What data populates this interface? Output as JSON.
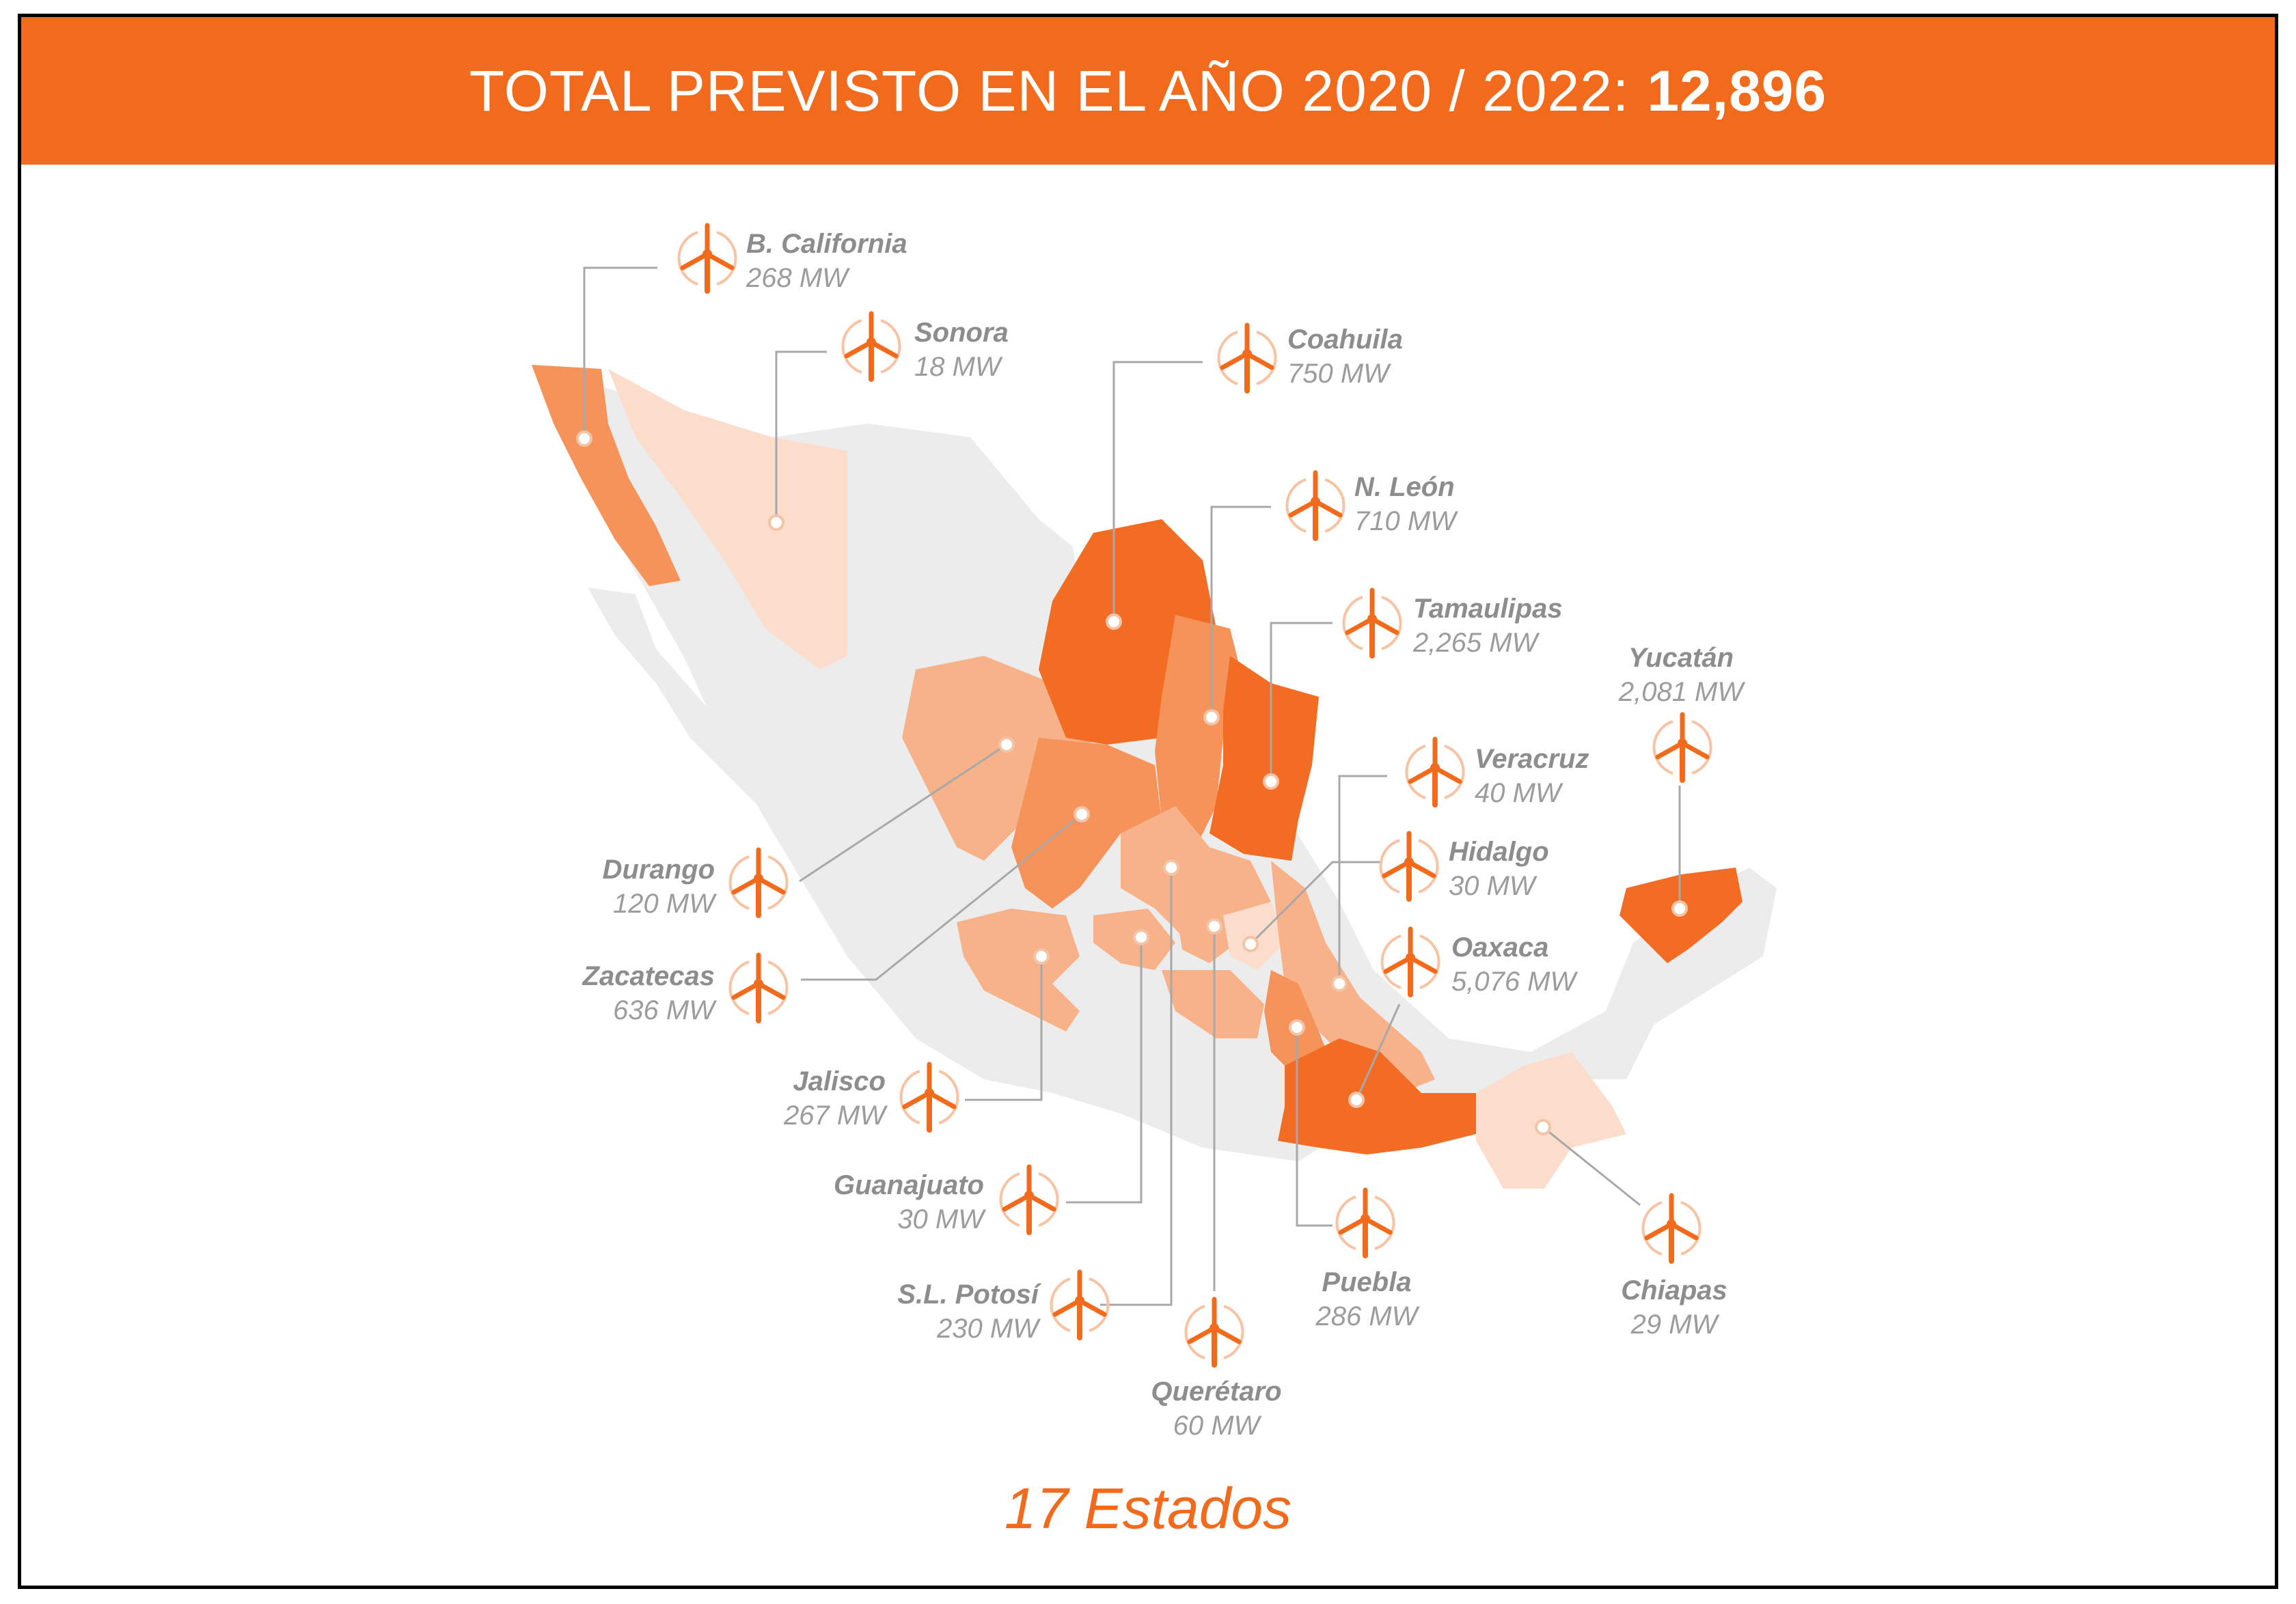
{
  "header": {
    "prefix": "TOTAL PREVISTO EN EL AÑO 2020 / 2022:",
    "total": "12,896"
  },
  "colors": {
    "brand_orange": "#f26a1b",
    "dark_state": "#f36c24",
    "mid_state": "#f5935a",
    "light_state": "#f7b28a",
    "pale_state": "#fcdccb",
    "base_map": "#ececec",
    "line": "#a8a8a8"
  },
  "states": [
    {
      "id": "baja-california",
      "name": "B. California",
      "value": "268 MW"
    },
    {
      "id": "sonora",
      "name": "Sonora",
      "value": "18 MW"
    },
    {
      "id": "coahuila",
      "name": "Coahuila",
      "value": "750 MW"
    },
    {
      "id": "nuevo-leon",
      "name": "N. León",
      "value": "710 MW"
    },
    {
      "id": "tamaulipas",
      "name": "Tamaulipas",
      "value": "2,265 MW"
    },
    {
      "id": "yucatan",
      "name": "Yucatán",
      "value": "2,081 MW"
    },
    {
      "id": "veracruz",
      "name": "Veracruz",
      "value": "40 MW"
    },
    {
      "id": "hidalgo",
      "name": "Hidalgo",
      "value": "30 MW"
    },
    {
      "id": "oaxaca",
      "name": "Oaxaca",
      "value": "5,076 MW"
    },
    {
      "id": "durango",
      "name": "Durango",
      "value": "120 MW"
    },
    {
      "id": "zacatecas",
      "name": "Zacatecas",
      "value": "636 MW"
    },
    {
      "id": "jalisco",
      "name": "Jalisco",
      "value": "267 MW"
    },
    {
      "id": "guanajuato",
      "name": "Guanajuato",
      "value": "30 MW"
    },
    {
      "id": "sl-potosi",
      "name": "S.L. Potosí",
      "value": "230 MW"
    },
    {
      "id": "queretaro",
      "name": "Querétaro",
      "value": "60 MW"
    },
    {
      "id": "puebla",
      "name": "Puebla",
      "value": "286 MW"
    },
    {
      "id": "chiapas",
      "name": "Chiapas",
      "value": "29 MW"
    }
  ],
  "footer": "17 Estados",
  "icon": "wind-turbine-icon"
}
